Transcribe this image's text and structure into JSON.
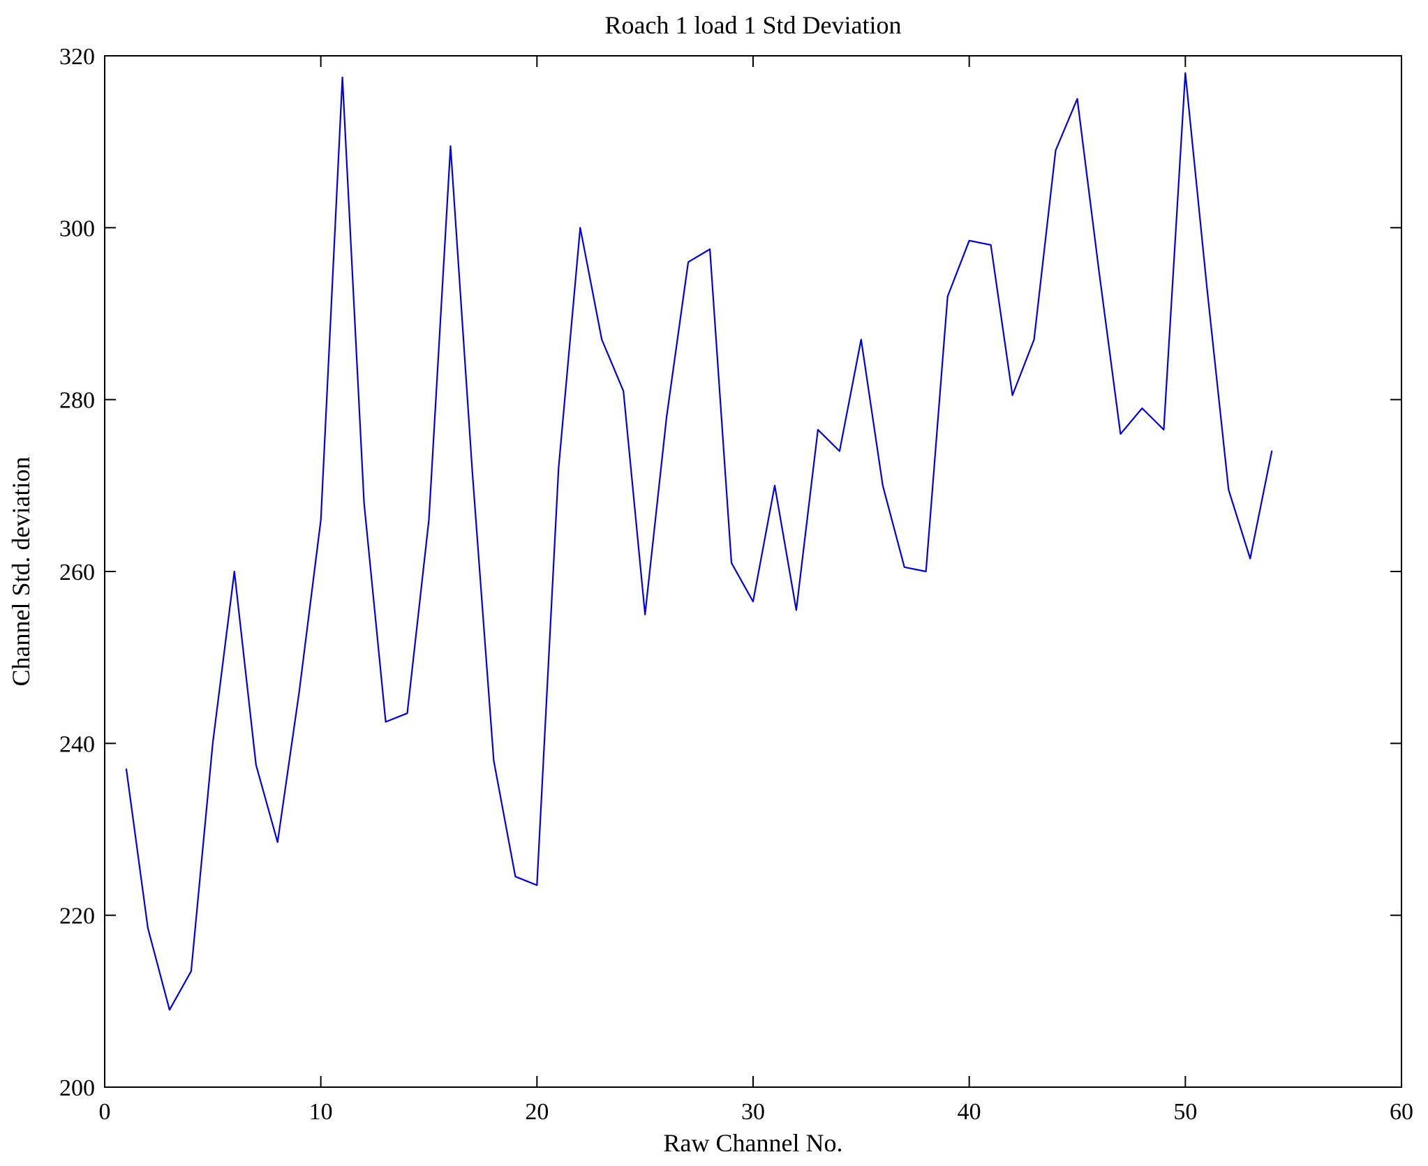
{
  "figure": {
    "title": "Roach 1 load 1 Std Deviation",
    "xlabel": "Raw Channel No.",
    "ylabel": "Channel Std. deviation"
  },
  "chart_data": {
    "type": "line",
    "title": "Roach 1 load 1 Std Deviation",
    "xlabel": "Raw Channel No.",
    "ylabel": "Channel Std. deviation",
    "xlim": [
      0,
      60
    ],
    "ylim": [
      200,
      320
    ],
    "xticks": [
      0,
      10,
      20,
      30,
      40,
      50,
      60
    ],
    "yticks": [
      200,
      220,
      240,
      260,
      280,
      300,
      320
    ],
    "grid": false,
    "legend_position": "none",
    "line_color": "#0000e0",
    "axis_color": "#000000",
    "background_color": "#ffffff",
    "series_name": "Channel Std. deviation",
    "x": [
      1,
      2,
      3,
      4,
      5,
      6,
      7,
      8,
      9,
      10,
      11,
      12,
      13,
      14,
      15,
      16,
      17,
      18,
      19,
      20,
      21,
      22,
      23,
      24,
      25,
      26,
      27,
      28,
      29,
      30,
      31,
      32,
      33,
      34,
      35,
      36,
      37,
      38,
      39,
      40,
      41,
      42,
      43,
      44,
      45,
      46,
      47,
      48,
      49,
      50,
      51,
      52,
      53,
      54
    ],
    "y": [
      237,
      218.5,
      209,
      213.5,
      240,
      260,
      237.5,
      228.5,
      246,
      266,
      317.5,
      268,
      242.5,
      243.5,
      266,
      309.5,
      272,
      238,
      224.5,
      223.5,
      272,
      300,
      287,
      281,
      255,
      278,
      296,
      297.5,
      261,
      256.5,
      270,
      255.5,
      276.5,
      274,
      287,
      270,
      260.5,
      260,
      292,
      298.5,
      298,
      280.5,
      287,
      309,
      315,
      295,
      276,
      279,
      276.5,
      318,
      293,
      269.5,
      261.5,
      274
    ]
  }
}
